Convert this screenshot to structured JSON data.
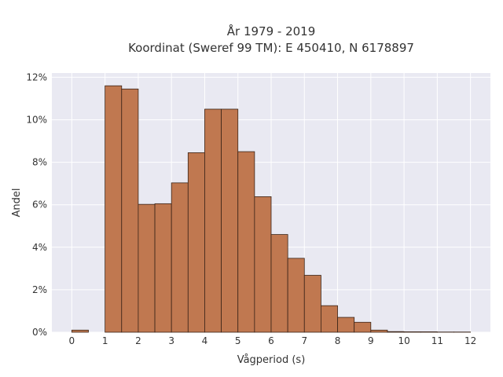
{
  "chart_data": {
    "type": "bar",
    "title": "År 1979 - 2019",
    "subtitle": "Koordinat (Sweref 99 TM): E 450410, N 6178897",
    "xlabel": "Vågperiod (s)",
    "ylabel": "Andel",
    "xlim": [
      -0.6,
      12.6
    ],
    "ylim": [
      0,
      12.2
    ],
    "x_ticks": [
      "0",
      "1",
      "2",
      "3",
      "4",
      "5",
      "6",
      "7",
      "8",
      "9",
      "10",
      "11",
      "12"
    ],
    "y_ticks": [
      "0%",
      "2%",
      "4%",
      "6%",
      "8%",
      "10%",
      "12%"
    ],
    "y_tick_values": [
      0,
      2,
      4,
      6,
      8,
      10,
      12
    ],
    "bins": [
      {
        "start": 0.0,
        "end": 0.5,
        "value": 0.1
      },
      {
        "start": 1.0,
        "end": 1.5,
        "value": 11.6
      },
      {
        "start": 1.5,
        "end": 2.0,
        "value": 11.45
      },
      {
        "start": 2.0,
        "end": 2.5,
        "value": 6.02
      },
      {
        "start": 2.5,
        "end": 3.0,
        "value": 6.05
      },
      {
        "start": 3.0,
        "end": 3.5,
        "value": 7.03
      },
      {
        "start": 3.5,
        "end": 4.0,
        "value": 8.45
      },
      {
        "start": 4.0,
        "end": 4.5,
        "value": 10.5
      },
      {
        "start": 4.5,
        "end": 5.0,
        "value": 10.5
      },
      {
        "start": 5.0,
        "end": 5.5,
        "value": 8.5
      },
      {
        "start": 5.5,
        "end": 6.0,
        "value": 6.38
      },
      {
        "start": 6.0,
        "end": 6.5,
        "value": 4.6
      },
      {
        "start": 6.5,
        "end": 7.0,
        "value": 3.48
      },
      {
        "start": 7.0,
        "end": 7.5,
        "value": 2.68
      },
      {
        "start": 7.5,
        "end": 8.0,
        "value": 1.25
      },
      {
        "start": 8.0,
        "end": 8.5,
        "value": 0.7
      },
      {
        "start": 8.5,
        "end": 9.0,
        "value": 0.47
      },
      {
        "start": 9.0,
        "end": 9.5,
        "value": 0.1
      },
      {
        "start": 9.5,
        "end": 10.0,
        "value": 0.03
      },
      {
        "start": 10.0,
        "end": 10.5,
        "value": 0.02
      },
      {
        "start": 10.5,
        "end": 11.0,
        "value": 0.02
      },
      {
        "start": 11.0,
        "end": 11.5,
        "value": 0.01
      },
      {
        "start": 11.5,
        "end": 12.0,
        "value": 0.01
      }
    ],
    "grid": true,
    "legend": "none",
    "colors": {
      "bar_fill": "#c07850",
      "bar_stroke": "#3a2418",
      "plot_background": "#e9e9f2",
      "grid": "#ffffff",
      "text": "#333333"
    }
  }
}
